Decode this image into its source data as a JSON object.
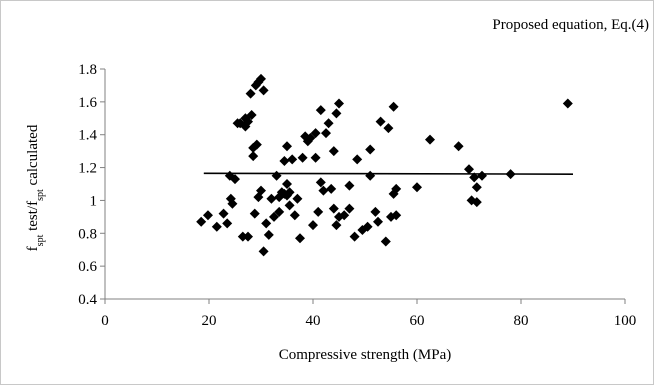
{
  "chart_data": {
    "type": "scatter",
    "annotation": "Proposed equation, Eq.(4)",
    "xlabel": "Compressive strength (MPa)",
    "ylabel": {
      "parts": [
        {
          "text": "f",
          "sub": false
        },
        {
          "text": "spt",
          "sub": true
        },
        {
          "text": " test/f",
          "sub": false
        },
        {
          "text": "spt",
          "sub": true
        },
        {
          "text": " calculated",
          "sub": false
        }
      ]
    },
    "xlim": [
      0,
      100
    ],
    "ylim": [
      0.4,
      1.8
    ],
    "x_ticks": [
      "0",
      "20",
      "40",
      "60",
      "80",
      "100"
    ],
    "y_ticks": [
      "0.4",
      "0.6",
      "0.8",
      "1",
      "1.2",
      "1.4",
      "1.6",
      "1.8"
    ],
    "grid": false,
    "marker": "diamond",
    "colors": {
      "marker": "#000000",
      "line": "#000000",
      "axis": "#808080"
    },
    "fit_line": {
      "x": [
        19,
        90
      ],
      "y": [
        1.165,
        1.16
      ]
    },
    "points": [
      [
        18.5,
        0.87
      ],
      [
        19.8,
        0.91
      ],
      [
        21.5,
        0.84
      ],
      [
        22.8,
        0.92
      ],
      [
        23.5,
        0.86
      ],
      [
        24.0,
        1.15
      ],
      [
        24.2,
        1.01
      ],
      [
        24.5,
        0.98
      ],
      [
        25.0,
        1.13
      ],
      [
        25.5,
        1.47
      ],
      [
        26.0,
        1.47
      ],
      [
        26.5,
        0.78
      ],
      [
        27.0,
        1.5
      ],
      [
        27.0,
        1.45
      ],
      [
        27.5,
        1.48
      ],
      [
        27.5,
        0.78
      ],
      [
        28.0,
        1.65
      ],
      [
        28.2,
        1.52
      ],
      [
        28.5,
        1.32
      ],
      [
        28.5,
        1.27
      ],
      [
        28.8,
        0.92
      ],
      [
        29.0,
        1.7
      ],
      [
        29.2,
        1.34
      ],
      [
        29.5,
        1.72
      ],
      [
        29.5,
        1.02
      ],
      [
        30.0,
        1.74
      ],
      [
        30.0,
        1.06
      ],
      [
        30.5,
        1.67
      ],
      [
        30.5,
        0.69
      ],
      [
        31.0,
        0.86
      ],
      [
        31.5,
        0.79
      ],
      [
        32.0,
        1.01
      ],
      [
        32.5,
        0.9
      ],
      [
        33.0,
        1.15
      ],
      [
        33.5,
        1.02
      ],
      [
        33.5,
        0.93
      ],
      [
        34.0,
        1.05
      ],
      [
        34.5,
        1.24
      ],
      [
        34.5,
        1.04
      ],
      [
        35.0,
        1.33
      ],
      [
        35.0,
        1.1
      ],
      [
        35.0,
        1.03
      ],
      [
        35.5,
        1.05
      ],
      [
        35.5,
        0.97
      ],
      [
        36.0,
        1.25
      ],
      [
        36.5,
        0.91
      ],
      [
        37.0,
        1.01
      ],
      [
        37.5,
        0.77
      ],
      [
        38.0,
        1.26
      ],
      [
        38.5,
        1.39
      ],
      [
        39.0,
        1.36
      ],
      [
        39.5,
        1.38
      ],
      [
        40.0,
        0.85
      ],
      [
        40.5,
        1.41
      ],
      [
        40.5,
        1.26
      ],
      [
        41.0,
        0.93
      ],
      [
        41.5,
        1.55
      ],
      [
        41.5,
        1.11
      ],
      [
        42.0,
        1.06
      ],
      [
        42.5,
        1.41
      ],
      [
        43.0,
        1.47
      ],
      [
        43.5,
        1.07
      ],
      [
        44.0,
        1.3
      ],
      [
        44.0,
        0.95
      ],
      [
        44.5,
        1.53
      ],
      [
        44.5,
        0.85
      ],
      [
        45.0,
        1.59
      ],
      [
        45.0,
        0.9
      ],
      [
        46.0,
        0.91
      ],
      [
        47.0,
        0.95
      ],
      [
        47.0,
        1.09
      ],
      [
        48.0,
        0.78
      ],
      [
        48.5,
        1.25
      ],
      [
        49.5,
        0.82
      ],
      [
        50.5,
        0.84
      ],
      [
        51.0,
        1.31
      ],
      [
        51.0,
        1.15
      ],
      [
        52.0,
        0.93
      ],
      [
        52.5,
        0.87
      ],
      [
        53.0,
        1.48
      ],
      [
        54.0,
        0.75
      ],
      [
        54.5,
        1.44
      ],
      [
        55.0,
        0.9
      ],
      [
        55.5,
        1.57
      ],
      [
        55.5,
        1.04
      ],
      [
        56.0,
        1.07
      ],
      [
        56.0,
        0.91
      ],
      [
        60.0,
        1.08
      ],
      [
        62.5,
        1.37
      ],
      [
        68.0,
        1.33
      ],
      [
        70.0,
        1.19
      ],
      [
        70.5,
        1.0
      ],
      [
        71.0,
        1.14
      ],
      [
        71.5,
        1.08
      ],
      [
        71.5,
        0.99
      ],
      [
        72.5,
        1.15
      ],
      [
        78.0,
        1.16
      ],
      [
        89.0,
        1.59
      ]
    ]
  }
}
